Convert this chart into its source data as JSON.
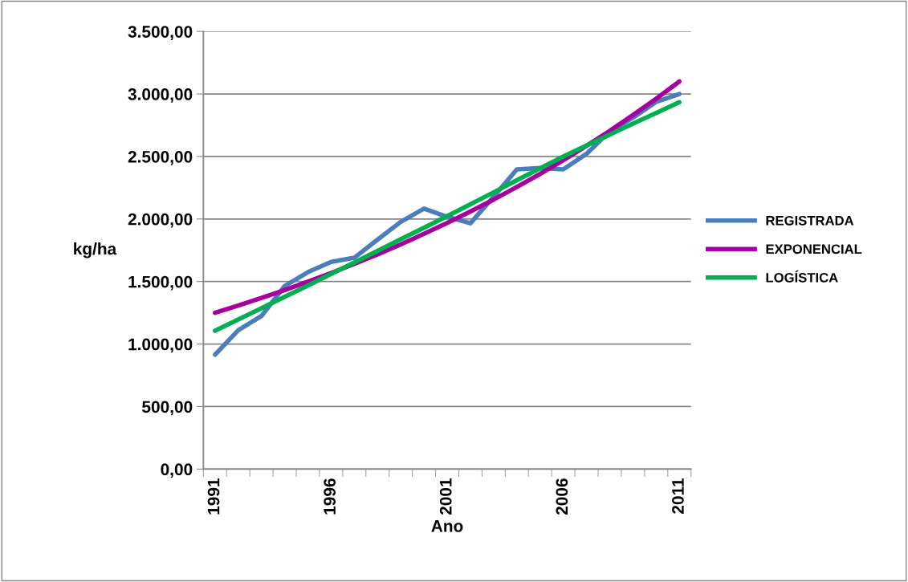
{
  "chart_data": {
    "type": "line",
    "xlabel": "Ano",
    "ylabel": "kg/ha",
    "categories": [
      "1991",
      null,
      null,
      null,
      null,
      "1996",
      null,
      null,
      null,
      null,
      "2001",
      null,
      null,
      null,
      null,
      "2006",
      null,
      null,
      null,
      null,
      "2011"
    ],
    "series": [
      {
        "name": "REGISTRADA",
        "color": "#4a7ebb",
        "values": [
          915,
          1111,
          1224,
          1464,
          1575,
          1657,
          1690,
          1835,
          1977,
          2083,
          2018,
          1966,
          2178,
          2397,
          2408,
          2397,
          2521,
          2702,
          2810,
          2937,
          3000
        ]
      },
      {
        "name": "EXPONENCIAL",
        "color": "#a6009e",
        "values": [
          1250,
          1308,
          1369,
          1432,
          1499,
          1568,
          1641,
          1717,
          1797,
          1881,
          1968,
          2060,
          2155,
          2256,
          2360,
          2470,
          2585,
          2705,
          2831,
          2962,
          3100
        ]
      },
      {
        "name": "LOGÍSTICA",
        "color": "#00b050",
        "values": [
          1106,
          1196,
          1286,
          1377,
          1468,
          1560,
          1652,
          1745,
          1838,
          1930,
          2023,
          2118,
          2213,
          2310,
          2405,
          2500,
          2588,
          2675,
          2762,
          2848,
          2934
        ]
      }
    ],
    "ylim": [
      0,
      3500
    ],
    "yticks": [
      {
        "value": 0,
        "label": "0,00"
      },
      {
        "value": 500,
        "label": "500,00"
      },
      {
        "value": 1000,
        "label": "1.000,00"
      },
      {
        "value": 1500,
        "label": "1.500,00"
      },
      {
        "value": 2000,
        "label": "2.000,00"
      },
      {
        "value": 2500,
        "label": "2.500,00"
      },
      {
        "value": 3000,
        "label": "3.000,00"
      },
      {
        "value": 3500,
        "label": "3.500,00"
      }
    ],
    "grid": "y",
    "legend": "right",
    "marker": "none",
    "line_style": "solid"
  }
}
